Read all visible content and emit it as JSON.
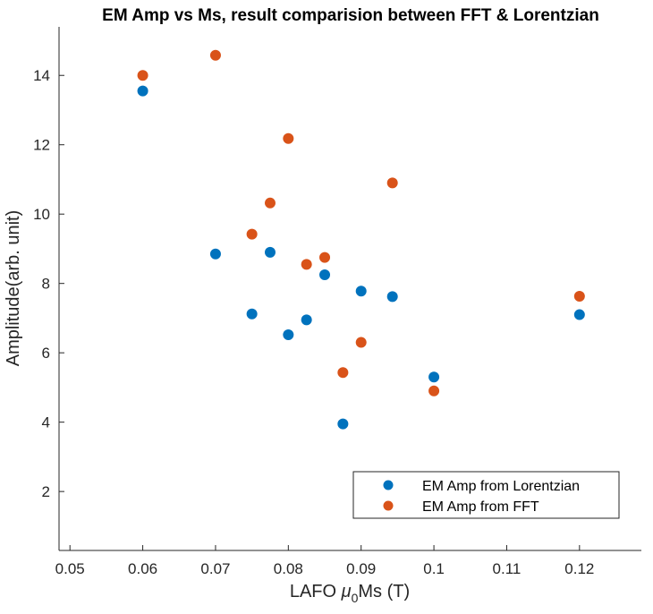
{
  "chart_data": {
    "type": "scatter",
    "title": "EM Amp vs Ms, result comparision between FFT & Lorentzian",
    "xlabel_prefix": "LAFO ",
    "xlabel_mu": "μ",
    "xlabel_sub": "0",
    "xlabel_suffix": "Ms (T)",
    "ylabel": "Amplitude(arb. unit)",
    "xlim": [
      0.0485,
      0.1285
    ],
    "ylim": [
      0.3,
      15.4
    ],
    "xticks": [
      0.05,
      0.06,
      0.07,
      0.08,
      0.09,
      0.1,
      0.11,
      0.12
    ],
    "xtick_labels": [
      "0.05",
      "0.06",
      "0.07",
      "0.08",
      "0.09",
      "0.1",
      "0.11",
      "0.12"
    ],
    "yticks": [
      2,
      4,
      6,
      8,
      10,
      12,
      14
    ],
    "ytick_labels": [
      "2",
      "4",
      "6",
      "8",
      "10",
      "12",
      "14"
    ],
    "grid": false,
    "legend_position": "bottom-right",
    "series": [
      {
        "name": "EM Amp from Lorentzian",
        "color": "#0072BD",
        "x": [
          0.06,
          0.07,
          0.075,
          0.0775,
          0.08,
          0.0825,
          0.085,
          0.0875,
          0.09,
          0.0943,
          0.1,
          0.12
        ],
        "y": [
          13.55,
          8.85,
          7.12,
          8.9,
          6.52,
          6.95,
          8.25,
          3.95,
          7.78,
          7.62,
          5.3,
          7.1
        ]
      },
      {
        "name": "EM Amp from FFT",
        "color": "#D95319",
        "x": [
          0.06,
          0.07,
          0.075,
          0.0775,
          0.08,
          0.0825,
          0.085,
          0.0875,
          0.09,
          0.0943,
          0.1,
          0.12
        ],
        "y": [
          14.0,
          14.58,
          9.42,
          10.32,
          12.18,
          8.55,
          8.75,
          5.43,
          6.3,
          10.9,
          4.9,
          7.63
        ]
      }
    ]
  }
}
